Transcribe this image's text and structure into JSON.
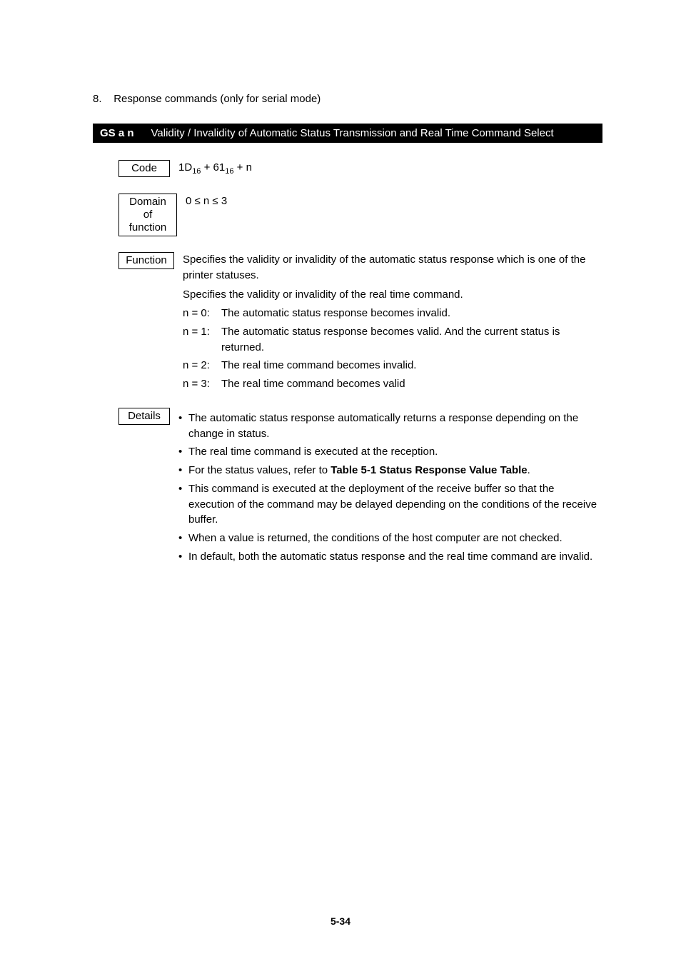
{
  "section": {
    "num_label": "8.",
    "title": "Response commands (only for serial mode)"
  },
  "bar": {
    "cmd": "GS a n",
    "desc": "Validity / Invalidity of Automatic Status Transmission and Real Time Command Select"
  },
  "code": {
    "label": "Code",
    "value_pre": "1D",
    "value_sub1": "16",
    "value_mid": " + 61",
    "value_sub2": "16",
    "value_post": " + n"
  },
  "domain": {
    "label_line1": "Domain of",
    "label_line2": "function",
    "text": "0 ≤ n ≤ 3"
  },
  "func": {
    "label": "Function",
    "intro": "Specifies the validity or invalidity of the automatic status response which is one of the printer statuses.",
    "line2": "Specifies the validity or invalidity of the real time command.",
    "n0_lead": "n = 0:",
    "n0": "The automatic status response becomes invalid.",
    "n1_lead": "n = 1:",
    "n1": "The automatic status response becomes valid. And the current status is returned.",
    "n2_lead": "n = 2:",
    "n2": "The real time command becomes invalid.",
    "n3_lead": "n = 3:",
    "n3": "The real time command becomes valid"
  },
  "details": {
    "label": "Details",
    "b1": "The automatic status response automatically returns a response depending on the change in status.",
    "b2": "The real time command is executed at the reception.",
    "b3_pre": "For the status values, refer to ",
    "b3_bold": "Table 5-1 Status Response Value Table",
    "b3_post": ".",
    "b4": "This command is executed at the deployment of the receive buffer so that the execution of the command may be delayed depending on the conditions of the receive buffer.",
    "b5": "When a value is returned, the conditions of the host computer are not checked.",
    "b6": "In default, both the automatic status response and the real time command are invalid."
  },
  "page_num": "5-34",
  "bullet": "•"
}
